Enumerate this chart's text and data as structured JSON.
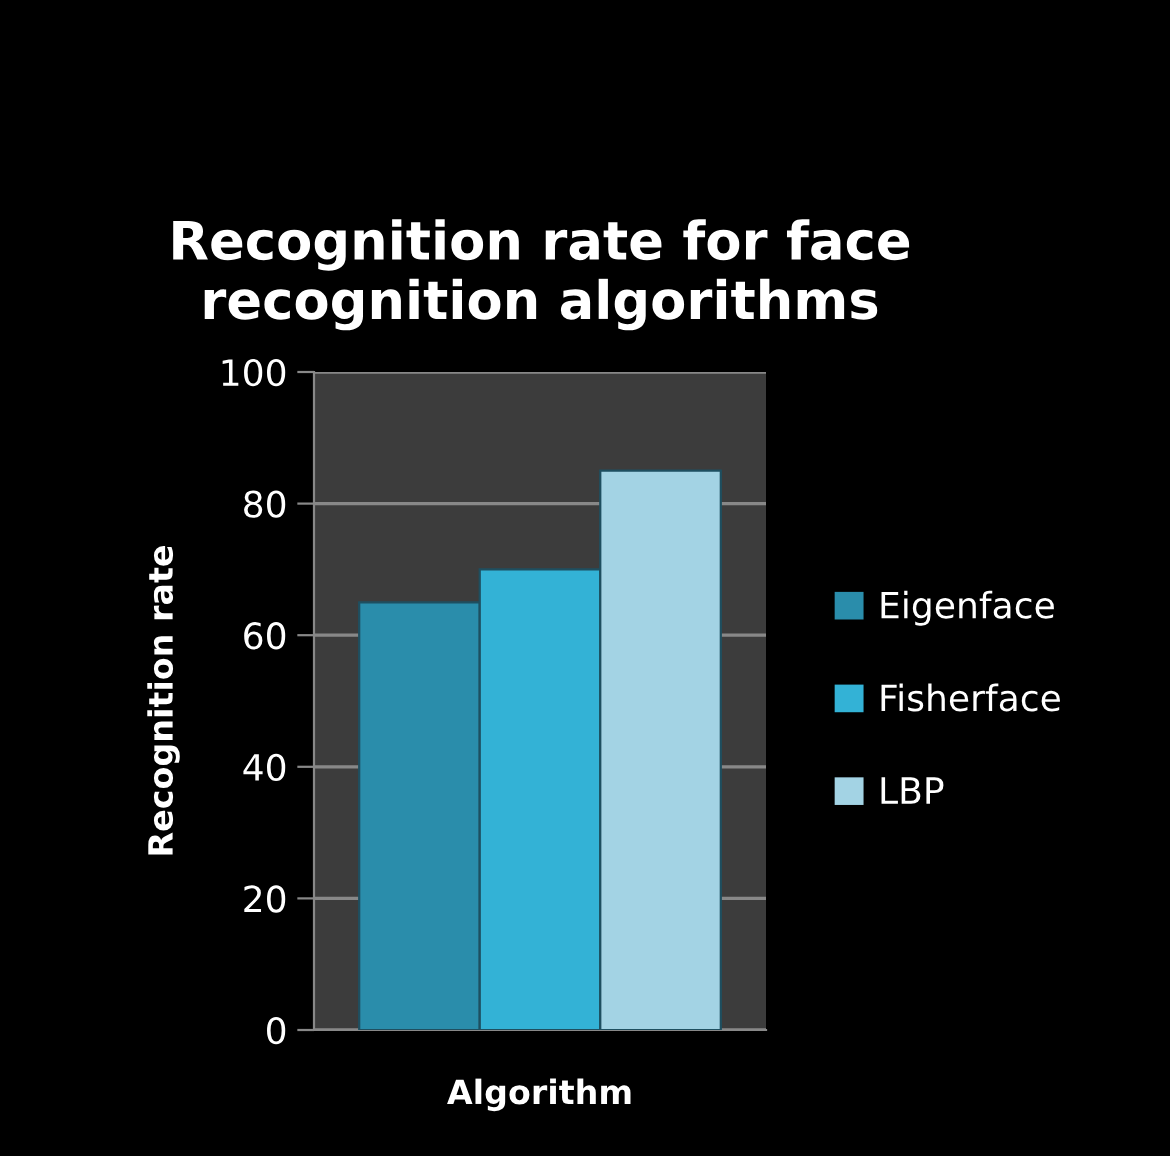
{
  "chart_data": {
    "type": "bar",
    "title": "Recognition rate for face recognition algorithms",
    "xlabel": "Algorithm",
    "ylabel": "Recognition rate",
    "categories": [
      null
    ],
    "series": [
      {
        "name": "Eigenface",
        "color": "#2a8dab",
        "values": [
          65
        ]
      },
      {
        "name": "Fisherface",
        "color": "#33b2d6",
        "values": [
          70
        ]
      },
      {
        "name": "LBP",
        "color": "#a3d3e4",
        "values": [
          85
        ]
      }
    ],
    "ylim": [
      0,
      100
    ],
    "yticks": [
      0,
      20,
      40,
      60,
      80,
      100
    ],
    "grid": "y",
    "legend": "right"
  }
}
